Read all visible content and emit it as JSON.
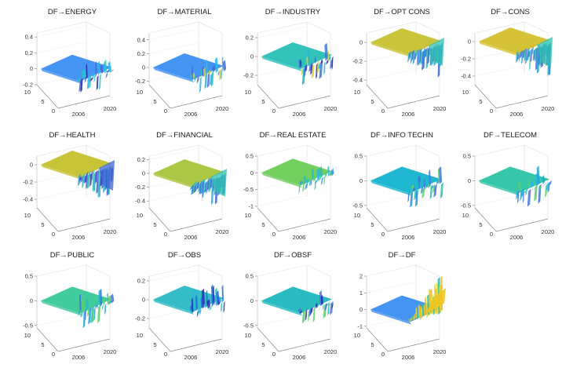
{
  "chart_data": [
    {
      "type": "surface3d",
      "title": "DF→ENERGY",
      "zticks": [
        "0.4",
        "0.2",
        "0",
        "-0.2"
      ],
      "zlim": [
        -0.2,
        0.45
      ],
      "x_label": "2006",
      "x_label2": "2020",
      "yticks": [
        "10",
        "5",
        "0"
      ],
      "base_color": "#3f8ff0",
      "flat_color": "#3a8ef2",
      "tail": "jagged",
      "tail_colors": [
        "#2dc6c6",
        "#4a64d8",
        "#2c2ab0",
        "#29b5e8"
      ],
      "amp": 0.35
    },
    {
      "type": "surface3d",
      "title": "DF→MATERIAL",
      "zticks": [
        "0.4",
        "0.2",
        "0",
        "-0.2"
      ],
      "zlim": [
        -0.25,
        0.5
      ],
      "x_label": "2006",
      "x_label2": "2020",
      "yticks": [
        "10",
        "5",
        "0"
      ],
      "base_color": "#3f8ff0",
      "flat_color": "#3a8ef2",
      "tail": "jagged",
      "tail_colors": [
        "#2dc6c6",
        "#4a64d8",
        "#c8d23a",
        "#29b5e8"
      ],
      "amp": 0.35
    },
    {
      "type": "surface3d",
      "title": "DF→INDUSTRY",
      "zticks": [
        "0.2",
        "0",
        "-0.2"
      ],
      "zlim": [
        -0.3,
        0.25
      ],
      "x_label": "2006",
      "x_label2": "2020",
      "yticks": [
        "10",
        "5",
        "0"
      ],
      "base_color": "#2bc0b8",
      "flat_color": "#28bfb6",
      "tail": "jagged",
      "tail_colors": [
        "#3f76e0",
        "#2c2ab0",
        "#d6d32f",
        "#1fb3d6"
      ],
      "amp": 0.4
    },
    {
      "type": "surface3d",
      "title": "DF→OPT CONS",
      "zticks": [
        "0",
        "-0.2",
        "-0.4"
      ],
      "zlim": [
        -0.45,
        0.1
      ],
      "x_label": "2006",
      "x_label2": "2020",
      "yticks": [
        "10",
        "5",
        "0"
      ],
      "base_color": "#c9c334",
      "flat_color": "#c6c12e",
      "tail": "dip",
      "tail_colors": [
        "#2ba6d8",
        "#1f7fd0",
        "#33c0b0",
        "#3a64d6"
      ],
      "amp": 0.45
    },
    {
      "type": "surface3d",
      "title": "DF→CONS",
      "zticks": [
        "0",
        "-0.2",
        "-0.4"
      ],
      "zlim": [
        -0.5,
        0.1
      ],
      "x_label": "2006",
      "x_label2": "2020",
      "yticks": [
        "10",
        "5",
        "0"
      ],
      "base_color": "#d8c030",
      "flat_color": "#d4bf2c",
      "tail": "dip",
      "tail_colors": [
        "#2ba6d8",
        "#1f7fd0",
        "#2bbfb0",
        "#5a66d6"
      ],
      "amp": 0.5
    },
    {
      "type": "surface3d",
      "title": "DF→HEALTH",
      "zticks": [
        "0",
        "-0.2",
        "-0.4"
      ],
      "zlim": [
        -0.5,
        0.1
      ],
      "x_label": "2006",
      "x_label2": "2020",
      "yticks": [
        "10",
        "5",
        "0"
      ],
      "base_color": "#c8c232",
      "flat_color": "#c5c12d",
      "tail": "dip",
      "tail_colors": [
        "#2ba6d8",
        "#2c2ab0",
        "#3f64d6",
        "#29c0a8"
      ],
      "amp": 0.5
    },
    {
      "type": "surface3d",
      "title": "DF→FINANCIAL",
      "zticks": [
        "0.2",
        "0",
        "-0.2",
        "-0.4"
      ],
      "zlim": [
        -0.5,
        0.25
      ],
      "x_label": "2006",
      "x_label2": "2020",
      "yticks": [
        "10",
        "5",
        "0"
      ],
      "base_color": "#a8c23a",
      "flat_color": "#a7c53a",
      "tail": "dip",
      "tail_colors": [
        "#2ba6d8",
        "#2c6ad0",
        "#2bbfb0",
        "#3f64d6"
      ],
      "amp": 0.45
    },
    {
      "type": "surface3d",
      "title": "DF→REAL ESTATE",
      "zticks": [
        "0.5",
        "0",
        "-0.5",
        "-1"
      ],
      "zlim": [
        -1.05,
        0.5
      ],
      "x_label": "2006",
      "x_label2": "2020",
      "yticks": [
        "10",
        "5",
        "0"
      ],
      "base_color": "#6fcc5a",
      "flat_color": "#6ccd56",
      "tail": "jagged",
      "tail_colors": [
        "#2bbfb0",
        "#3f9ad8",
        "#29b5e8",
        "#5ecf6a"
      ],
      "amp": 0.25
    },
    {
      "type": "surface3d",
      "title": "DF→INFO TECHN",
      "zticks": [
        "0.5",
        "0",
        "-0.5"
      ],
      "zlim": [
        -0.55,
        0.5
      ],
      "x_label": "2006",
      "x_label2": "2020",
      "yticks": [
        "10",
        "5",
        "0"
      ],
      "base_color": "#17b5cf",
      "flat_color": "#14b4cf",
      "tail": "jagged",
      "tail_colors": [
        "#3f76e0",
        "#2bbfb0",
        "#1f8fd6",
        "#5ecf6a"
      ],
      "amp": 0.4
    },
    {
      "type": "surface3d",
      "title": "DF→TELECOM",
      "zticks": [
        "0.5",
        "0",
        "-0.5"
      ],
      "zlim": [
        -0.55,
        0.5
      ],
      "x_label": "2006",
      "x_label2": "2020",
      "yticks": [
        "10",
        "5",
        "0"
      ],
      "base_color": "#2ec4a8",
      "flat_color": "#2bc3a4",
      "tail": "jagged",
      "tail_colors": [
        "#1fa3d8",
        "#3f76e0",
        "#5ecf6a",
        "#29b5e8"
      ],
      "amp": 0.45
    },
    {
      "type": "surface3d",
      "title": "DF→PUBLIC",
      "zticks": [
        "0.5",
        "0",
        "-0.5"
      ],
      "zlim": [
        -0.55,
        0.5
      ],
      "x_label": "2006",
      "x_label2": "2020",
      "yticks": [
        "10",
        "5",
        "0"
      ],
      "base_color": "#3cc89a",
      "flat_color": "#38c898",
      "tail": "jagged",
      "tail_colors": [
        "#1fa3d8",
        "#3f76e0",
        "#2bbfb0",
        "#5ecf6a"
      ],
      "amp": 0.4
    },
    {
      "type": "surface3d",
      "title": "DF→OBS",
      "zticks": [
        "0.2",
        "0",
        "-0.2"
      ],
      "zlim": [
        -0.3,
        0.25
      ],
      "x_label": "2006",
      "x_label2": "2020",
      "yticks": [
        "10",
        "5",
        "0"
      ],
      "base_color": "#28b8c8",
      "flat_color": "#2ab9c4",
      "tail": "wave",
      "tail_colors": [
        "#1f6fe0",
        "#2c2ab0",
        "#29b5e8",
        "#2bbfb0"
      ],
      "amp": 0.45
    },
    {
      "type": "surface3d",
      "title": "DF→OBSF",
      "zticks": [
        "0.5",
        "0",
        "-0.5"
      ],
      "zlim": [
        -0.55,
        0.5
      ],
      "x_label": "2006",
      "x_label2": "2020",
      "yticks": [
        "10",
        "5",
        "0"
      ],
      "base_color": "#1fb8c0",
      "flat_color": "#1cb7bf",
      "tail": "jagged",
      "tail_colors": [
        "#3f76e0",
        "#2c2ab0",
        "#2bbfb0",
        "#5ecf6a"
      ],
      "amp": 0.35
    },
    {
      "type": "surface3d",
      "title": "DF→DF",
      "zticks": [
        "2",
        "1",
        "0",
        "-1"
      ],
      "zlim": [
        -1.1,
        2
      ],
      "x_label": "2006",
      "x_label2": "2020",
      "yticks": [
        "10",
        "5",
        "0"
      ],
      "base_color": "#3d8df0",
      "flat_color": "#3a8ef2",
      "tail": "rise",
      "tail_colors": [
        "#f0d020",
        "#f5b820",
        "#e6e030",
        "#2bbfb0"
      ],
      "amp": 0.5
    }
  ]
}
